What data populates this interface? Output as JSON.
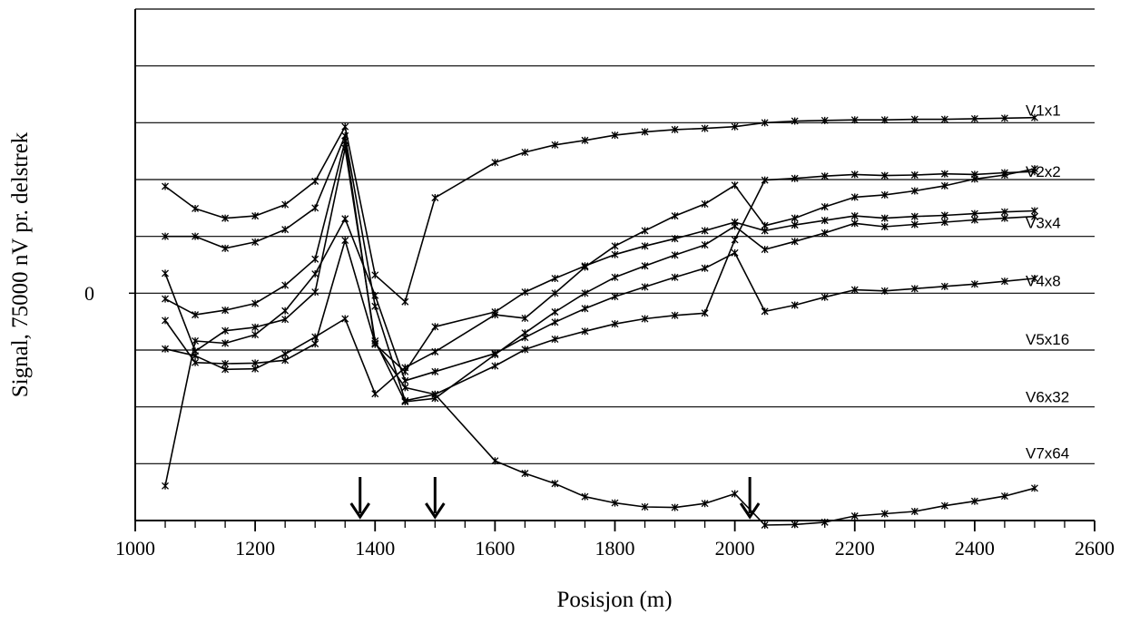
{
  "chart_data": {
    "type": "line",
    "xlabel": "Posisjon (m)",
    "ylabel": "Signal, 75000 nV pr. delstrek",
    "xlim": [
      1000,
      2600
    ],
    "x_ticks": [
      "1000",
      "1200",
      "1400",
      "1600",
      "1800",
      "2000",
      "2200",
      "2400",
      "2600"
    ],
    "ylim": [
      -4,
      5
    ],
    "y_tick_label": "0",
    "y_tick_value": 0,
    "grid": "horizontal",
    "marker": "asterisk",
    "arrows_at_x": [
      1375,
      1500,
      2025
    ],
    "x": [
      1050,
      1100,
      1150,
      1200,
      1250,
      1300,
      1350,
      1400,
      1450,
      1500,
      1600,
      1650,
      1700,
      1750,
      1800,
      1850,
      1900,
      1950,
      2000,
      2050,
      2100,
      2150,
      2200,
      2250,
      2300,
      2350,
      2400,
      2450,
      2500
    ],
    "series": [
      {
        "name": "V1x1",
        "values": [
          1.88,
          1.49,
          1.32,
          1.36,
          1.56,
          1.97,
          2.93,
          0.32,
          -0.15,
          1.68,
          2.3,
          2.48,
          2.61,
          2.69,
          2.78,
          2.84,
          2.88,
          2.9,
          2.93,
          3.0,
          3.03,
          3.04,
          3.05,
          3.05,
          3.06,
          3.06,
          3.07,
          3.08,
          3.09
        ]
      },
      {
        "name": "V2x2",
        "values": [
          1.0,
          1.0,
          0.79,
          0.9,
          1.12,
          1.5,
          2.77,
          -0.23,
          -1.89,
          -1.78,
          -1.28,
          -0.99,
          -0.81,
          -0.67,
          -0.54,
          -0.45,
          -0.39,
          -0.35,
          0.94,
          1.99,
          2.02,
          2.06,
          2.09,
          2.07,
          2.08,
          2.1,
          2.09,
          2.12,
          2.14
        ]
      },
      {
        "name": "V3x4",
        "values": [
          -0.1,
          -0.38,
          -0.3,
          -0.18,
          0.14,
          0.6,
          2.68,
          -0.9,
          -1.38,
          -0.59,
          -0.33,
          0.02,
          0.26,
          0.48,
          0.68,
          0.83,
          0.96,
          1.1,
          1.25,
          1.1,
          1.2,
          1.28,
          1.36,
          1.32,
          1.35,
          1.37,
          1.4,
          1.43,
          1.45
        ]
      },
      {
        "name": "V4x8",
        "values": [
          0.35,
          -1.02,
          -0.66,
          -0.6,
          -0.46,
          0.02,
          2.55,
          -0.84,
          -1.91,
          -1.85,
          -1.08,
          -0.7,
          -0.33,
          0.0,
          0.28,
          0.48,
          0.67,
          0.85,
          1.18,
          0.77,
          0.91,
          1.06,
          1.23,
          1.17,
          1.21,
          1.25,
          1.29,
          1.32,
          1.35
        ]
      },
      {
        "name": "V5x16",
        "values": [
          -0.48,
          -1.22,
          -1.24,
          -1.23,
          -1.18,
          -0.89,
          0.93,
          -0.88,
          -1.66,
          -1.78,
          -2.95,
          -3.17,
          -3.35,
          -3.58,
          -3.69,
          -3.76,
          -3.77,
          -3.7,
          -3.53,
          -4.08,
          -4.07,
          -4.03,
          -3.92,
          -3.88,
          -3.84,
          -3.74,
          -3.66,
          -3.57,
          -3.43
        ]
      },
      {
        "name": "V6x32",
        "values": [
          -0.98,
          -1.1,
          -1.34,
          -1.33,
          -1.07,
          -0.77,
          -0.45,
          -1.77,
          -1.31,
          -1.03,
          -0.38,
          -0.44,
          0.0,
          0.46,
          0.83,
          1.1,
          1.36,
          1.57,
          1.9,
          1.19,
          1.32,
          1.52,
          1.69,
          1.73,
          1.8,
          1.89,
          2.01,
          2.08,
          2.19
        ]
      },
      {
        "name": "V7x64",
        "values": [
          -3.39,
          -0.84,
          -0.88,
          -0.73,
          -0.31,
          0.34,
          1.31,
          -0.04,
          -1.54,
          -1.38,
          -1.06,
          -0.78,
          -0.51,
          -0.27,
          -0.06,
          0.11,
          0.28,
          0.44,
          0.71,
          -0.32,
          -0.21,
          -0.07,
          0.06,
          0.04,
          0.08,
          0.12,
          0.16,
          0.21,
          0.26
        ]
      }
    ],
    "label_y": [
      3.22,
      2.14,
      1.24,
      0.22,
      -0.81,
      -1.82,
      -2.81
    ]
  }
}
